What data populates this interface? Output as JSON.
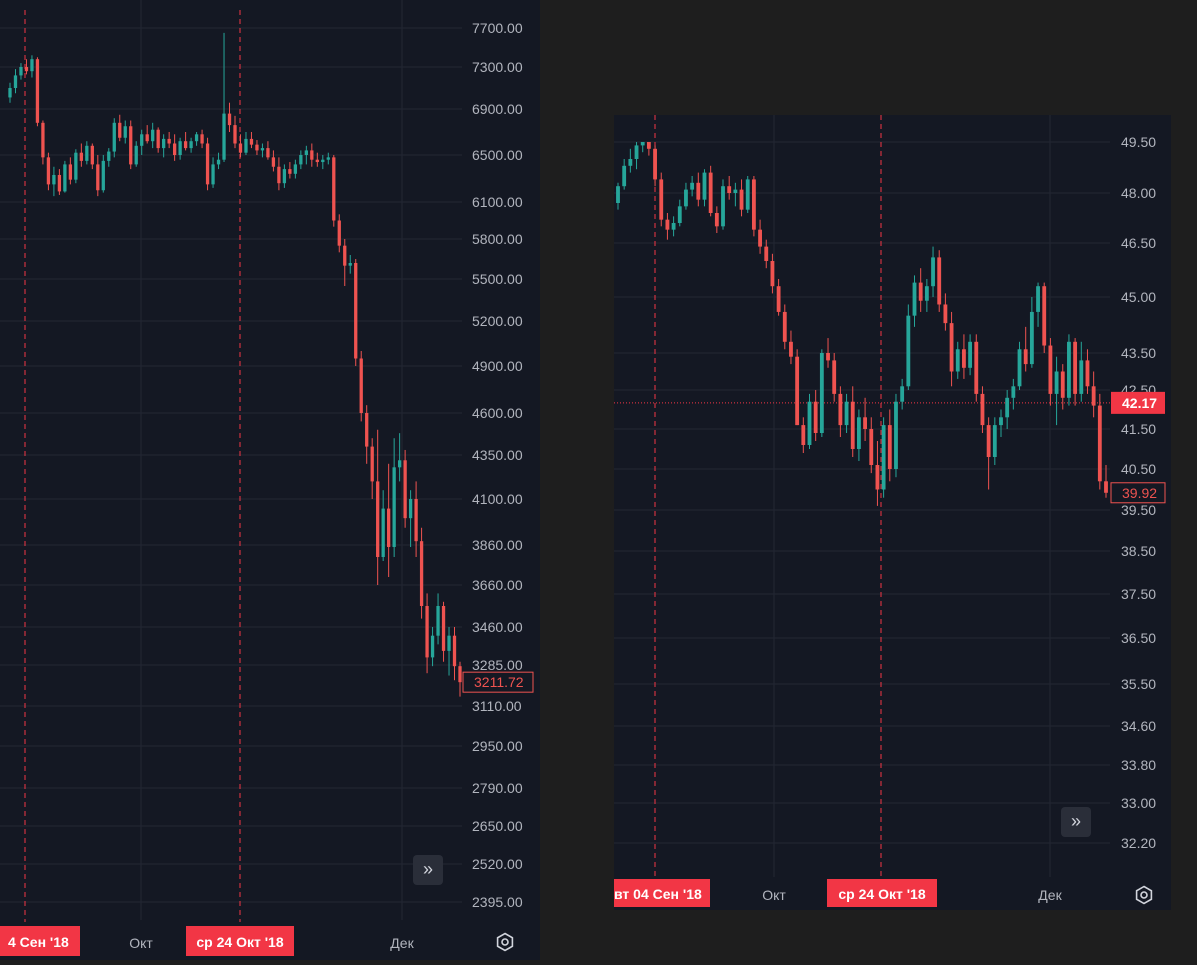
{
  "colors": {
    "up": "#26a69a",
    "down": "#ef5350",
    "grid": "#232733",
    "text": "#b2b5be",
    "marker": "#f23645"
  },
  "chart_data": [
    {
      "type": "candlestick",
      "y_ticks": [
        "7700.00",
        "7300.00",
        "6900.00",
        "6500.00",
        "6100.00",
        "5800.00",
        "5500.00",
        "5200.00",
        "4900.00",
        "4600.00",
        "4350.00",
        "4100.00",
        "3860.00",
        "3660.00",
        "3460.00",
        "3285.00",
        "3110.00",
        "2950.00",
        "2790.00",
        "2650.00",
        "2520.00",
        "2395.00"
      ],
      "x_ticks": [
        "Окт",
        "Дек"
      ],
      "marked_dates": [
        "4 Сен '18",
        "ср 24 Окт '18"
      ],
      "price_label": "3211.72",
      "ylim": [
        2395,
        7700
      ],
      "candles": [
        [
          7010,
          7150,
          6960,
          7100
        ],
        [
          7100,
          7280,
          7050,
          7220
        ],
        [
          7220,
          7340,
          7180,
          7300
        ],
        [
          7300,
          7380,
          7230,
          7260
        ],
        [
          7260,
          7420,
          7200,
          7380
        ],
        [
          7380,
          7400,
          6750,
          6780
        ],
        [
          6780,
          6800,
          6420,
          6480
        ],
        [
          6480,
          6520,
          6200,
          6250
        ],
        [
          6250,
          6400,
          6150,
          6330
        ],
        [
          6330,
          6380,
          6160,
          6190
        ],
        [
          6190,
          6450,
          6180,
          6420
        ],
        [
          6420,
          6480,
          6250,
          6290
        ],
        [
          6290,
          6550,
          6260,
          6520
        ],
        [
          6520,
          6600,
          6400,
          6450
        ],
        [
          6450,
          6620,
          6420,
          6580
        ],
        [
          6580,
          6600,
          6380,
          6420
        ],
        [
          6420,
          6500,
          6150,
          6200
        ],
        [
          6200,
          6500,
          6180,
          6450
        ],
        [
          6450,
          6560,
          6400,
          6530
        ],
        [
          6530,
          6820,
          6480,
          6780
        ],
        [
          6780,
          6850,
          6620,
          6650
        ],
        [
          6650,
          6800,
          6600,
          6750
        ],
        [
          6750,
          6800,
          6380,
          6420
        ],
        [
          6420,
          6620,
          6400,
          6580
        ],
        [
          6580,
          6720,
          6500,
          6680
        ],
        [
          6680,
          6760,
          6600,
          6620
        ],
        [
          6620,
          6780,
          6560,
          6720
        ],
        [
          6720,
          6740,
          6520,
          6560
        ],
        [
          6560,
          6680,
          6480,
          6640
        ],
        [
          6640,
          6700,
          6560,
          6600
        ],
        [
          6600,
          6680,
          6450,
          6500
        ],
        [
          6500,
          6650,
          6460,
          6620
        ],
        [
          6620,
          6700,
          6540,
          6560
        ],
        [
          6560,
          6650,
          6520,
          6620
        ],
        [
          6620,
          6700,
          6580,
          6680
        ],
        [
          6680,
          6720,
          6560,
          6600
        ],
        [
          6600,
          6650,
          6200,
          6250
        ],
        [
          6250,
          6480,
          6220,
          6420
        ],
        [
          6420,
          6520,
          6380,
          6460
        ],
        [
          6460,
          7650,
          6440,
          6860
        ],
        [
          6860,
          6960,
          6700,
          6760
        ],
        [
          6760,
          6840,
          6560,
          6600
        ],
        [
          6600,
          6680,
          6480,
          6520
        ],
        [
          6520,
          6700,
          6500,
          6640
        ],
        [
          6640,
          6700,
          6560,
          6590
        ],
        [
          6590,
          6630,
          6500,
          6540
        ],
        [
          6540,
          6600,
          6480,
          6560
        ],
        [
          6560,
          6620,
          6460,
          6480
        ],
        [
          6480,
          6540,
          6360,
          6400
        ],
        [
          6400,
          6480,
          6200,
          6260
        ],
        [
          6260,
          6420,
          6220,
          6380
        ],
        [
          6380,
          6440,
          6300,
          6340
        ],
        [
          6340,
          6460,
          6300,
          6420
        ],
        [
          6420,
          6540,
          6380,
          6500
        ],
        [
          6500,
          6580,
          6420,
          6540
        ],
        [
          6540,
          6600,
          6400,
          6460
        ],
        [
          6460,
          6520,
          6400,
          6440
        ],
        [
          6440,
          6500,
          6380,
          6460
        ],
        [
          6460,
          6520,
          6420,
          6480
        ],
        [
          6480,
          6500,
          5900,
          5950
        ],
        [
          5950,
          6000,
          5700,
          5750
        ],
        [
          5750,
          5800,
          5450,
          5600
        ],
        [
          5600,
          5680,
          5540,
          5620
        ],
        [
          5620,
          5650,
          4900,
          4950
        ],
        [
          4950,
          5000,
          4550,
          4600
        ],
        [
          4600,
          4650,
          4300,
          4400
        ],
        [
          4400,
          4450,
          4100,
          4200
        ],
        [
          4200,
          4500,
          3660,
          3800
        ],
        [
          3800,
          4150,
          3780,
          4050
        ],
        [
          4050,
          4300,
          3700,
          3850
        ],
        [
          3850,
          4450,
          3800,
          4280
        ],
        [
          4280,
          4480,
          4200,
          4320
        ],
        [
          4320,
          4380,
          3950,
          4000
        ],
        [
          4000,
          4150,
          3850,
          4100
        ],
        [
          4100,
          4200,
          3800,
          3880
        ],
        [
          3880,
          3950,
          3500,
          3560
        ],
        [
          3560,
          3620,
          3250,
          3320
        ],
        [
          3320,
          3460,
          3280,
          3420
        ],
        [
          3420,
          3620,
          3380,
          3560
        ],
        [
          3560,
          3580,
          3300,
          3350
        ],
        [
          3350,
          3460,
          3240,
          3420
        ],
        [
          3420,
          3460,
          3220,
          3280
        ],
        [
          3280,
          3300,
          3150,
          3211.72
        ]
      ]
    },
    {
      "type": "candlestick",
      "y_ticks": [
        "49.50",
        "48.00",
        "46.50",
        "45.00",
        "43.50",
        "42.50",
        "41.50",
        "40.50",
        "39.50",
        "38.50",
        "37.50",
        "36.50",
        "35.50",
        "34.60",
        "33.80",
        "33.00",
        "32.20"
      ],
      "x_ticks": [
        "Окт",
        "Дек"
      ],
      "marked_dates": [
        "вт 04 Сен '18",
        "ср 24 Окт '18"
      ],
      "price_label_last": "39.92",
      "price_label_cross": "42.17",
      "ylim": [
        32.2,
        49.5
      ],
      "candles": [
        [
          47.7,
          48.3,
          47.5,
          48.2
        ],
        [
          48.2,
          49.0,
          48.1,
          48.8
        ],
        [
          48.8,
          49.3,
          48.6,
          49.0
        ],
        [
          49.0,
          49.6,
          48.7,
          49.4
        ],
        [
          49.4,
          49.8,
          49.2,
          49.6
        ],
        [
          49.6,
          49.9,
          49.1,
          49.3
        ],
        [
          49.3,
          49.4,
          48.2,
          48.4
        ],
        [
          48.4,
          48.6,
          47.0,
          47.2
        ],
        [
          47.2,
          47.4,
          46.6,
          46.9
        ],
        [
          46.9,
          47.3,
          46.7,
          47.1
        ],
        [
          47.1,
          47.8,
          47.0,
          47.6
        ],
        [
          47.6,
          48.3,
          47.5,
          48.1
        ],
        [
          48.1,
          48.5,
          47.9,
          48.3
        ],
        [
          48.3,
          48.6,
          47.6,
          47.8
        ],
        [
          47.8,
          48.7,
          47.6,
          48.6
        ],
        [
          48.6,
          48.8,
          47.3,
          47.4
        ],
        [
          47.4,
          47.6,
          46.8,
          47.0
        ],
        [
          47.0,
          48.4,
          46.9,
          48.2
        ],
        [
          48.2,
          48.5,
          47.8,
          48.0
        ],
        [
          48.0,
          48.3,
          47.6,
          48.1
        ],
        [
          48.1,
          48.4,
          47.3,
          47.5
        ],
        [
          47.5,
          48.5,
          47.4,
          48.4
        ],
        [
          48.4,
          48.5,
          46.7,
          46.9
        ],
        [
          46.9,
          47.2,
          46.2,
          46.4
        ],
        [
          46.4,
          46.6,
          45.8,
          46.0
        ],
        [
          46.0,
          46.2,
          45.1,
          45.3
        ],
        [
          45.3,
          45.5,
          44.5,
          44.6
        ],
        [
          44.6,
          44.8,
          43.6,
          43.8
        ],
        [
          43.8,
          44.1,
          43.2,
          43.4
        ],
        [
          43.4,
          43.6,
          41.6,
          41.6
        ],
        [
          41.6,
          41.8,
          40.9,
          41.1
        ],
        [
          41.1,
          42.4,
          41.0,
          42.2
        ],
        [
          42.2,
          42.5,
          41.2,
          41.4
        ],
        [
          41.4,
          43.6,
          41.3,
          43.5
        ],
        [
          43.5,
          43.9,
          43.1,
          43.3
        ],
        [
          43.3,
          43.5,
          42.2,
          42.4
        ],
        [
          42.4,
          42.6,
          41.3,
          41.6
        ],
        [
          41.6,
          42.4,
          41.4,
          42.2
        ],
        [
          42.2,
          42.6,
          40.8,
          41.0
        ],
        [
          41.0,
          42.0,
          40.7,
          41.8
        ],
        [
          41.8,
          42.3,
          41.2,
          41.5
        ],
        [
          41.5,
          41.8,
          40.4,
          40.6
        ],
        [
          40.6,
          41.2,
          39.6,
          40.0
        ],
        [
          40.0,
          41.8,
          39.8,
          41.6
        ],
        [
          41.6,
          42.0,
          40.2,
          40.5
        ],
        [
          40.5,
          42.4,
          40.3,
          42.2
        ],
        [
          42.2,
          42.8,
          42.0,
          42.6
        ],
        [
          42.6,
          44.8,
          42.5,
          44.5
        ],
        [
          44.5,
          45.6,
          44.2,
          45.4
        ],
        [
          45.4,
          45.8,
          44.6,
          44.9
        ],
        [
          44.9,
          45.5,
          44.6,
          45.3
        ],
        [
          45.3,
          46.4,
          45.0,
          46.1
        ],
        [
          46.1,
          46.3,
          44.6,
          44.8
        ],
        [
          44.8,
          45.1,
          44.1,
          44.3
        ],
        [
          44.3,
          44.6,
          42.6,
          43.0
        ],
        [
          43.0,
          43.8,
          42.8,
          43.6
        ],
        [
          43.6,
          44.0,
          42.8,
          43.1
        ],
        [
          43.1,
          44.0,
          42.9,
          43.8
        ],
        [
          43.8,
          44.0,
          42.2,
          42.4
        ],
        [
          42.4,
          42.6,
          41.4,
          41.6
        ],
        [
          41.6,
          41.8,
          40.0,
          40.8
        ],
        [
          40.8,
          41.8,
          40.6,
          41.6
        ],
        [
          41.6,
          42.0,
          41.3,
          41.8
        ],
        [
          41.8,
          42.5,
          41.5,
          42.3
        ],
        [
          42.3,
          42.8,
          42.0,
          42.6
        ],
        [
          42.6,
          43.8,
          42.5,
          43.6
        ],
        [
          43.6,
          44.2,
          43.0,
          43.2
        ],
        [
          43.2,
          45.0,
          43.1,
          44.6
        ],
        [
          44.6,
          45.4,
          44.2,
          45.3
        ],
        [
          45.3,
          45.4,
          43.5,
          43.7
        ],
        [
          43.7,
          43.9,
          42.1,
          42.4
        ],
        [
          42.4,
          43.4,
          41.6,
          43.0
        ],
        [
          43.0,
          43.2,
          42.0,
          42.3
        ],
        [
          42.3,
          44.0,
          42.1,
          43.8
        ],
        [
          43.8,
          43.9,
          42.1,
          42.4
        ],
        [
          42.4,
          43.8,
          42.2,
          43.3
        ],
        [
          43.3,
          43.6,
          42.4,
          42.6
        ],
        [
          42.6,
          43.0,
          41.8,
          42.1
        ],
        [
          42.1,
          42.4,
          40.0,
          40.2
        ],
        [
          40.2,
          40.6,
          39.8,
          39.92
        ]
      ]
    }
  ]
}
